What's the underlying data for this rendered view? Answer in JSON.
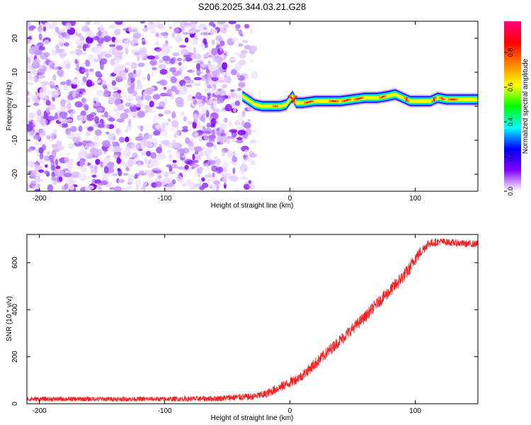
{
  "title": "S206.2025.344.03.21.G28",
  "chart_data": [
    {
      "type": "heatmap",
      "title": "S206.2025.344.03.21.G28",
      "xlabel": "Height of straight line (km)",
      "ylabel": "Frequency (Hz)",
      "xlim": [
        -210,
        150
      ],
      "ylim": [
        -25,
        25
      ],
      "x_ticks": [
        -200,
        -100,
        0,
        100
      ],
      "y_ticks": [
        -20,
        -10,
        0,
        10,
        20
      ],
      "noise_region_x": [
        -210,
        -28
      ],
      "ridge": {
        "x": [
          -38,
          -32,
          -28,
          -22,
          -15,
          -8,
          -3,
          0,
          2,
          5,
          10,
          20,
          30,
          40,
          50,
          60,
          70,
          78,
          84,
          90,
          96,
          100,
          106,
          112,
          118,
          125,
          135,
          150
        ],
        "y": [
          3,
          1.5,
          0.5,
          0,
          0,
          0,
          0.5,
          2,
          3,
          1,
          1,
          1.5,
          1.5,
          1.5,
          2,
          2.5,
          2.5,
          3,
          3.5,
          2.5,
          1.5,
          1.5,
          1.5,
          1.5,
          2.5,
          2,
          2,
          2
        ]
      },
      "colorbar": {
        "label": "Normalized spectral amplitude",
        "ticks": [
          "0.0",
          "0.2",
          "0.4",
          "0.6",
          "0.8"
        ],
        "tick_values": [
          0,
          0.2,
          0.4,
          0.6,
          0.8
        ],
        "range": [
          0,
          0.98
        ],
        "stops": [
          "#ffffff",
          "#8000ff",
          "#0000ff",
          "#00ffff",
          "#00ff00",
          "#ffff00",
          "#ff8000",
          "#ff0000",
          "#ff0080"
        ]
      }
    },
    {
      "type": "line",
      "xlabel": "Height of straight line (km)",
      "ylabel": "SNR (10 * v/v)",
      "xlim": [
        -210,
        150
      ],
      "ylim": [
        0,
        720
      ],
      "x_ticks": [
        -200,
        -100,
        0,
        100
      ],
      "y_ticks": [
        0,
        200,
        400,
        600
      ],
      "color": "#ee2222",
      "series": [
        {
          "name": "SNR",
          "x": [
            -210,
            -150,
            -100,
            -60,
            -40,
            -30,
            -20,
            -10,
            0,
            10,
            20,
            30,
            40,
            50,
            60,
            70,
            80,
            90,
            95,
            100,
            110,
            120,
            130,
            140,
            150
          ],
          "y": [
            20,
            20,
            20,
            22,
            28,
            30,
            40,
            65,
            90,
            120,
            170,
            220,
            270,
            320,
            370,
            430,
            480,
            540,
            570,
            620,
            680,
            690,
            685,
            680,
            680
          ],
          "noise_amplitude": [
            10,
            10,
            10,
            12,
            15,
            15,
            18,
            20,
            22,
            22,
            25,
            25,
            25,
            25,
            25,
            25,
            28,
            30,
            30,
            28,
            20,
            15,
            15,
            15,
            15
          ]
        }
      ]
    }
  ]
}
